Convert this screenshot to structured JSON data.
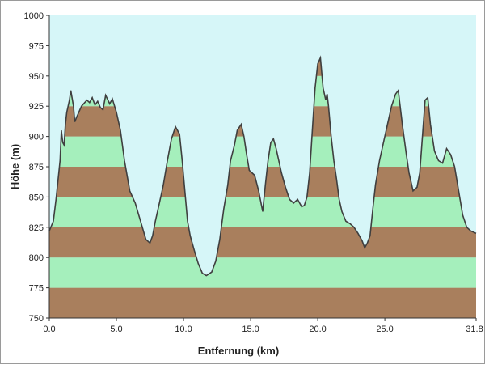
{
  "chart_data": {
    "type": "area",
    "xlabel": "Entfernung  (km)",
    "ylabel": "Höhe  (m)",
    "xlim": [
      0,
      31.8
    ],
    "ylim": [
      750,
      1000
    ],
    "x_ticks": [
      "0.0",
      "5.0",
      "10.0",
      "15.0",
      "20.0",
      "25.0",
      "31.8"
    ],
    "x_tick_values": [
      0,
      5,
      10,
      15,
      20,
      25,
      31.8
    ],
    "y_ticks": [
      "750",
      "775",
      "800",
      "825",
      "850",
      "875",
      "900",
      "925",
      "950",
      "975",
      "1000"
    ],
    "y_tick_values": [
      750,
      775,
      800,
      825,
      850,
      875,
      900,
      925,
      950,
      975,
      1000
    ],
    "band_step": 25,
    "grid": false,
    "legend": "none",
    "colors": {
      "sky": "#d6f6f8",
      "band_low": "#a97f5d",
      "band_high": "#a5efbc",
      "line": "#3f3f3f",
      "axis": "#333333"
    },
    "series": [
      {
        "x": [
          0,
          0.3,
          0.5,
          0.8,
          0.9,
          1.0,
          1.1,
          1.2,
          1.3,
          1.5,
          1.6,
          1.8,
          1.9,
          2.0,
          2.2,
          2.4,
          2.8,
          3.0,
          3.2,
          3.4,
          3.6,
          3.8,
          4.0,
          4.2,
          4.5,
          4.7,
          5.0,
          5.3,
          5.6,
          6.0,
          6.4,
          6.8,
          7.2,
          7.5,
          7.7,
          7.9,
          8.2,
          8.5,
          8.8,
          9.1,
          9.4,
          9.7,
          9.9,
          10.1,
          10.3,
          10.5,
          10.8,
          11.1,
          11.4,
          11.7,
          12.1,
          12.4,
          12.7,
          13.0,
          13.3,
          13.5,
          13.8,
          14.0,
          14.3,
          14.5,
          14.7,
          14.9,
          15.1,
          15.3,
          15.6,
          15.9,
          16.1,
          16.3,
          16.5,
          16.7,
          16.9,
          17.1,
          17.3,
          17.6,
          17.9,
          18.2,
          18.5,
          18.8,
          19.0,
          19.2,
          19.4,
          19.6,
          19.8,
          20.0,
          20.2,
          20.4,
          20.6,
          20.7,
          20.8,
          21.0,
          21.2,
          21.4,
          21.6,
          21.8,
          22.1,
          22.4,
          22.7,
          23.0,
          23.3,
          23.5,
          23.7,
          23.9,
          24.1,
          24.3,
          24.6,
          24.9,
          25.2,
          25.5,
          25.8,
          26.0,
          26.3,
          26.6,
          26.8,
          27.1,
          27.4,
          27.6,
          27.8,
          28.0,
          28.2,
          28.4,
          28.7,
          29.0,
          29.3,
          29.6,
          29.9,
          30.2,
          30.5,
          30.8,
          31.1,
          31.4,
          31.8
        ],
        "y": [
          822,
          830,
          848,
          880,
          905,
          895,
          893,
          910,
          920,
          930,
          938,
          925,
          912,
          915,
          920,
          925,
          930,
          928,
          932,
          926,
          929,
          924,
          922,
          934,
          927,
          931,
          920,
          905,
          880,
          855,
          845,
          830,
          815,
          812,
          818,
          830,
          845,
          860,
          880,
          898,
          908,
          902,
          880,
          855,
          830,
          818,
          806,
          795,
          787,
          785,
          788,
          797,
          815,
          840,
          860,
          880,
          893,
          905,
          910,
          900,
          885,
          872,
          870,
          868,
          855,
          838,
          860,
          880,
          895,
          898,
          890,
          880,
          870,
          858,
          848,
          845,
          848,
          842,
          843,
          850,
          870,
          905,
          940,
          960,
          965,
          940,
          930,
          935,
          925,
          900,
          880,
          865,
          848,
          838,
          830,
          828,
          825,
          820,
          814,
          808,
          812,
          818,
          840,
          860,
          880,
          895,
          910,
          925,
          935,
          938,
          910,
          885,
          870,
          855,
          858,
          870,
          900,
          930,
          932,
          910,
          888,
          880,
          878,
          890,
          885,
          875,
          855,
          835,
          825,
          822,
          820
        ]
      }
    ]
  }
}
